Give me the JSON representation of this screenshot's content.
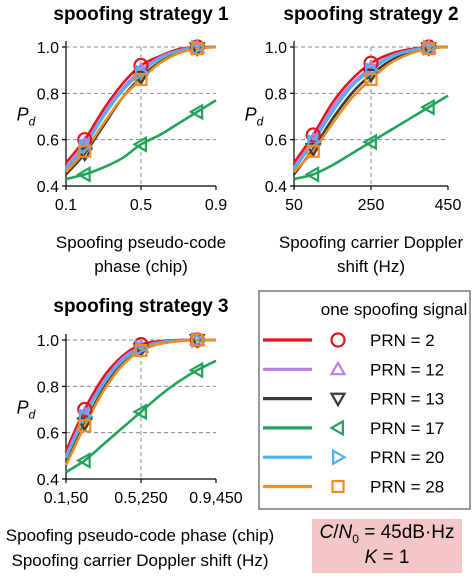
{
  "chart_data": [
    {
      "type": "line",
      "title": "spoofing strategy 1",
      "xlabel_lines": [
        "Spoofing pseudo-code",
        "phase (chip)"
      ],
      "ylabel": "P",
      "ylabel_sub": "d",
      "xlim": [
        0.1,
        0.9
      ],
      "ylim": [
        0.4,
        1.0
      ],
      "xticks": [
        0.1,
        0.5,
        0.9
      ],
      "xtick_labels": [
        "0.1",
        "0.5",
        "0.9"
      ],
      "yticks": [
        0.4,
        0.6,
        0.8,
        1.0
      ],
      "ytick_labels": [
        "0.4",
        "0.6",
        "0.8",
        "1.0"
      ],
      "grid": true,
      "marker_x": [
        0.2,
        0.5,
        0.8
      ],
      "series": [
        {
          "name": "PRN = 2",
          "x": [
            0.1,
            0.2,
            0.3,
            0.4,
            0.5,
            0.6,
            0.7,
            0.8,
            0.9
          ],
          "y": [
            0.5,
            0.6,
            0.73,
            0.84,
            0.92,
            0.96,
            0.99,
            1.0,
            1.0
          ]
        },
        {
          "name": "PRN = 12",
          "x": [
            0.1,
            0.2,
            0.3,
            0.4,
            0.5,
            0.6,
            0.7,
            0.8,
            0.9
          ],
          "y": [
            0.48,
            0.58,
            0.71,
            0.82,
            0.9,
            0.955,
            0.985,
            0.998,
            1.0
          ]
        },
        {
          "name": "PRN = 13",
          "x": [
            0.1,
            0.2,
            0.3,
            0.4,
            0.5,
            0.6,
            0.7,
            0.8,
            0.9
          ],
          "y": [
            0.45,
            0.54,
            0.66,
            0.78,
            0.87,
            0.935,
            0.975,
            0.995,
            1.0
          ]
        },
        {
          "name": "PRN = 17",
          "x": [
            0.1,
            0.2,
            0.3,
            0.4,
            0.5,
            0.6,
            0.7,
            0.8,
            0.9
          ],
          "y": [
            0.43,
            0.45,
            0.48,
            0.52,
            0.58,
            0.62,
            0.67,
            0.72,
            0.77
          ]
        },
        {
          "name": "PRN = 20",
          "x": [
            0.1,
            0.2,
            0.3,
            0.4,
            0.5,
            0.6,
            0.7,
            0.8,
            0.9
          ],
          "y": [
            0.47,
            0.57,
            0.7,
            0.81,
            0.89,
            0.95,
            0.983,
            0.997,
            1.0
          ]
        },
        {
          "name": "PRN = 28",
          "x": [
            0.1,
            0.2,
            0.3,
            0.4,
            0.5,
            0.6,
            0.7,
            0.8,
            0.9
          ],
          "y": [
            0.46,
            0.55,
            0.67,
            0.78,
            0.86,
            0.93,
            0.973,
            0.993,
            1.0
          ]
        }
      ]
    },
    {
      "type": "line",
      "title": "spoofing strategy 2",
      "xlabel_lines": [
        "Spoofing carrier Doppler",
        "shift (Hz)"
      ],
      "ylabel": "P",
      "ylabel_sub": "d",
      "xlim": [
        50,
        450
      ],
      "ylim": [
        0.4,
        1.0
      ],
      "xticks": [
        50,
        250,
        450
      ],
      "xtick_labels": [
        "50",
        "250",
        "450"
      ],
      "yticks": [
        0.4,
        0.6,
        0.8,
        1.0
      ],
      "ytick_labels": [
        "0.4",
        "0.6",
        "0.8",
        "1.0"
      ],
      "grid": true,
      "marker_x": [
        100,
        250,
        400
      ],
      "series": [
        {
          "name": "PRN = 2",
          "x": [
            50,
            100,
            150,
            200,
            250,
            300,
            350,
            400,
            450
          ],
          "y": [
            0.5,
            0.62,
            0.76,
            0.86,
            0.93,
            0.97,
            0.99,
            1.0,
            1.0
          ]
        },
        {
          "name": "PRN = 12",
          "x": [
            50,
            100,
            150,
            200,
            250,
            300,
            350,
            400,
            450
          ],
          "y": [
            0.48,
            0.6,
            0.74,
            0.84,
            0.91,
            0.96,
            0.985,
            0.998,
            1.0
          ]
        },
        {
          "name": "PRN = 13",
          "x": [
            50,
            100,
            150,
            200,
            250,
            300,
            350,
            400,
            450
          ],
          "y": [
            0.45,
            0.56,
            0.69,
            0.8,
            0.88,
            0.94,
            0.975,
            0.995,
            1.0
          ]
        },
        {
          "name": "PRN = 17",
          "x": [
            50,
            100,
            150,
            200,
            250,
            300,
            350,
            400,
            450
          ],
          "y": [
            0.43,
            0.45,
            0.49,
            0.54,
            0.59,
            0.64,
            0.69,
            0.74,
            0.79
          ]
        },
        {
          "name": "PRN = 20",
          "x": [
            50,
            100,
            150,
            200,
            250,
            300,
            350,
            400,
            450
          ],
          "y": [
            0.47,
            0.59,
            0.72,
            0.83,
            0.9,
            0.955,
            0.983,
            0.997,
            1.0
          ]
        },
        {
          "name": "PRN = 28",
          "x": [
            50,
            100,
            150,
            200,
            250,
            300,
            350,
            400,
            450
          ],
          "y": [
            0.46,
            0.55,
            0.67,
            0.78,
            0.86,
            0.93,
            0.97,
            0.993,
            1.0
          ]
        }
      ]
    },
    {
      "type": "line",
      "title": "spoofing strategy 3",
      "xlabel_lines": [
        "Spoofing pseudo-code phase (chip)",
        "Spoofing carrier Doppler shift (Hz)"
      ],
      "ylabel": "P",
      "ylabel_sub": "d",
      "xlim": [
        0,
        1
      ],
      "ylim": [
        0.4,
        1.0
      ],
      "xticks": [
        0,
        0.5,
        1
      ],
      "xtick_labels": [
        "0.1,50",
        "0.5,250",
        "0.9,450"
      ],
      "yticks": [
        0.4,
        0.6,
        0.8,
        1.0
      ],
      "ytick_labels": [
        "0.4",
        "0.6",
        "0.8",
        "1.0"
      ],
      "grid": true,
      "marker_x": [
        0.125,
        0.5,
        0.875
      ],
      "series": [
        {
          "name": "PRN = 2",
          "x": [
            0,
            0.125,
            0.25,
            0.375,
            0.5,
            0.625,
            0.75,
            0.875,
            1
          ],
          "y": [
            0.52,
            0.7,
            0.84,
            0.93,
            0.98,
            0.995,
            1.0,
            1.0,
            1.0
          ]
        },
        {
          "name": "PRN = 12",
          "x": [
            0,
            0.125,
            0.25,
            0.375,
            0.5,
            0.625,
            0.75,
            0.875,
            1
          ],
          "y": [
            0.5,
            0.68,
            0.82,
            0.92,
            0.97,
            0.99,
            0.998,
            1.0,
            1.0
          ]
        },
        {
          "name": "PRN = 13",
          "x": [
            0,
            0.125,
            0.25,
            0.375,
            0.5,
            0.625,
            0.75,
            0.875,
            1
          ],
          "y": [
            0.47,
            0.64,
            0.79,
            0.9,
            0.96,
            0.985,
            0.996,
            1.0,
            1.0
          ]
        },
        {
          "name": "PRN = 17",
          "x": [
            0,
            0.125,
            0.25,
            0.375,
            0.5,
            0.625,
            0.75,
            0.875,
            1
          ],
          "y": [
            0.43,
            0.48,
            0.55,
            0.62,
            0.69,
            0.76,
            0.82,
            0.87,
            0.91
          ]
        },
        {
          "name": "PRN = 20",
          "x": [
            0,
            0.125,
            0.25,
            0.375,
            0.5,
            0.625,
            0.75,
            0.875,
            1
          ],
          "y": [
            0.49,
            0.67,
            0.81,
            0.91,
            0.965,
            0.99,
            0.997,
            1.0,
            1.0
          ]
        },
        {
          "name": "PRN = 28",
          "x": [
            0,
            0.125,
            0.25,
            0.375,
            0.5,
            0.625,
            0.75,
            0.875,
            1
          ],
          "y": [
            0.46,
            0.63,
            0.78,
            0.89,
            0.955,
            0.983,
            0.995,
            1.0,
            1.0
          ]
        }
      ]
    }
  ],
  "legend": {
    "title": "one spoofing signal",
    "entries": [
      {
        "label": "PRN = 2",
        "color": "#e0161f",
        "marker": "circle"
      },
      {
        "label": "PRN = 12",
        "color": "#b97fe6",
        "marker": "triangle-up"
      },
      {
        "label": "PRN = 13",
        "color": "#3a3a3a",
        "marker": "triangle-down"
      },
      {
        "label": "PRN = 17",
        "color": "#21a35a",
        "marker": "triangle-left"
      },
      {
        "label": "PRN = 20",
        "color": "#4db3f0",
        "marker": "triangle-right"
      },
      {
        "label": "PRN = 28",
        "color": "#f28c1c",
        "marker": "square"
      }
    ]
  },
  "conditions": {
    "cn0_symbol": "C",
    "cn0_denom": "N",
    "cn0_sub": "0",
    "cn0_value": " = 45dB·Hz",
    "k_symbol": "K",
    "k_value": " = 1",
    "box_color": "#f4c7c7"
  }
}
